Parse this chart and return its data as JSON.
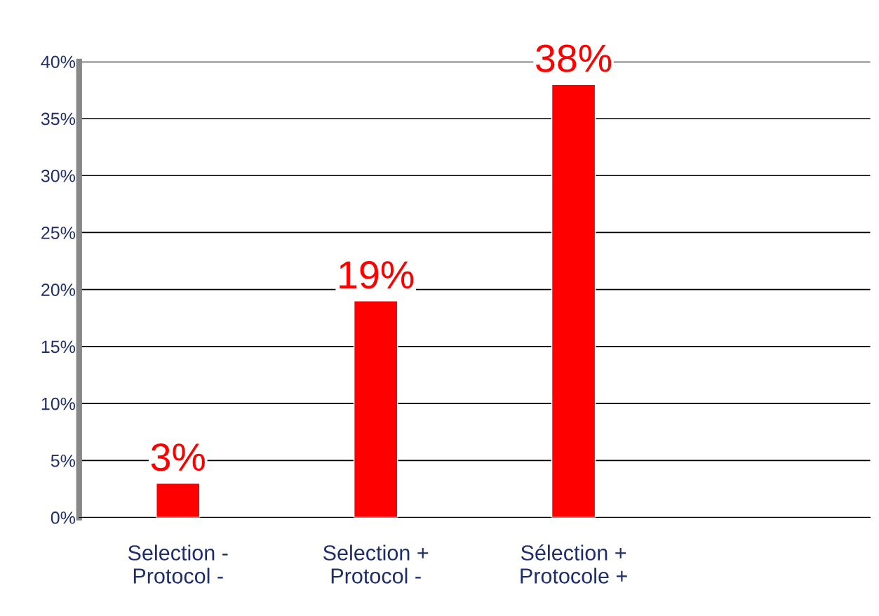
{
  "chart_data": {
    "type": "bar",
    "categories": [
      "Selection -\nProtocol -",
      "Selection +\nProtocol -",
      "Sélection +\nProtocole +",
      null
    ],
    "values": [
      3,
      19,
      38,
      null
    ],
    "color": "#ff0000",
    "value_labels": [
      "3%",
      "19%",
      "38%",
      null
    ],
    "ylim": [
      0,
      40
    ],
    "yticks": [
      {
        "value": 0,
        "label": "0%"
      },
      {
        "value": 5,
        "label": "5%"
      },
      {
        "value": 10,
        "label": "10%"
      },
      {
        "value": 15,
        "label": "15%"
      },
      {
        "value": 20,
        "label": "20%"
      },
      {
        "value": 25,
        "label": "25%"
      },
      {
        "value": 30,
        "label": "30%"
      },
      {
        "value": 35,
        "label": "35%"
      },
      {
        "value": 40,
        "label": "40%"
      }
    ],
    "grid": "y",
    "legend": false
  }
}
